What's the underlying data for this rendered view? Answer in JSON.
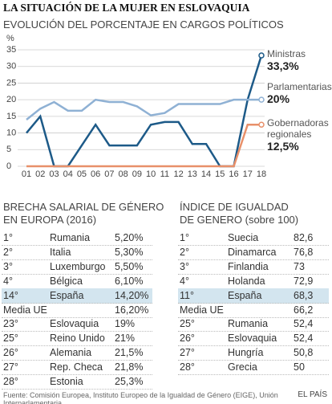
{
  "title": "LA SITUACIÓN DE LA MUJER EN ESLOVAQUIA",
  "chart_data": {
    "type": "line",
    "title": "EVOLUCIÓN DEL PORCENTAJE EN CARGOS POLÍTICOS",
    "y_label": "%",
    "categories": [
      "01",
      "02",
      "03",
      "04",
      "05",
      "06",
      "07",
      "08",
      "09",
      "10",
      "11",
      "12",
      "13",
      "14",
      "15",
      "16",
      "17",
      "18"
    ],
    "series": [
      {
        "name": "Ministras",
        "color": "#1d5a88",
        "values": [
          10,
          15,
          0,
          0,
          6.25,
          12.5,
          6.25,
          6.25,
          6.25,
          12.5,
          13.3,
          13.3,
          6.7,
          6.7,
          0,
          0,
          20,
          33.3
        ],
        "value_labels": [
          null,
          null,
          null,
          null,
          null,
          null,
          null,
          null,
          null,
          null,
          null,
          null,
          null,
          null,
          null,
          null,
          null,
          "33,3%"
        ]
      },
      {
        "name": "Parlamentarias",
        "color": "#8fb1d4",
        "values": [
          14,
          17.3,
          19.3,
          16.7,
          16.7,
          20,
          19.3,
          19.3,
          18,
          15.3,
          16,
          18.7,
          18.7,
          18.7,
          18.7,
          20,
          20,
          20
        ],
        "value_labels": [
          null,
          null,
          null,
          null,
          null,
          null,
          null,
          null,
          null,
          null,
          null,
          null,
          null,
          null,
          null,
          null,
          null,
          "20%"
        ]
      },
      {
        "name": "Gobernadoras regionales",
        "color": "#e8906a",
        "values": [
          0,
          0,
          0,
          0,
          0,
          0,
          0,
          0,
          0,
          0,
          0,
          0,
          0,
          0,
          0,
          0,
          12.5,
          12.5
        ],
        "value_labels": [
          null,
          null,
          null,
          null,
          null,
          null,
          null,
          null,
          null,
          null,
          null,
          null,
          null,
          null,
          null,
          null,
          null,
          "12,5%"
        ]
      }
    ],
    "ylim": [
      0,
      35
    ],
    "yticks": [
      0,
      5,
      10,
      15,
      20,
      25,
      30,
      35
    ],
    "grid": true
  },
  "tables": [
    {
      "title_lines": [
        "BRECHA SALARIAL DE GÉNERO",
        "EN EUROPA (2016)"
      ],
      "rows": [
        {
          "rank": "1°",
          "country": "Rumania",
          "value": "5,20%"
        },
        {
          "rank": "2°",
          "country": "Italia",
          "value": "5,30%"
        },
        {
          "rank": "3°",
          "country": "Luxemburgo",
          "value": "5,50%"
        },
        {
          "rank": "4°",
          "country": "Bélgica",
          "value": "6,10%"
        },
        {
          "rank": "14°",
          "country": "España",
          "value": "14,20%",
          "highlight": true
        },
        {
          "label": "Media UE",
          "value": "16,20%"
        },
        {
          "rank": "23°",
          "country": "Eslovaquia",
          "value": "19%"
        },
        {
          "rank": "25°",
          "country": "Reino Unido",
          "value": "21%"
        },
        {
          "rank": "26°",
          "country": "Alemania",
          "value": "21,5%"
        },
        {
          "rank": "27°",
          "country": "Rep. Checa",
          "value": "21,8%"
        },
        {
          "rank": "28°",
          "country": "Estonia",
          "value": "25,3%"
        }
      ]
    },
    {
      "title_lines": [
        "ÍNDICE DE IGUALDAD",
        "DE GENERO (sobre 100)"
      ],
      "rows": [
        {
          "rank": "1°",
          "country": "Suecia",
          "value": "82,6"
        },
        {
          "rank": "2°",
          "country": "Dinamarca",
          "value": "76,8"
        },
        {
          "rank": "3°",
          "country": "Finlandia",
          "value": "73"
        },
        {
          "rank": "4°",
          "country": "Holanda",
          "value": "72,9"
        },
        {
          "rank": "11°",
          "country": "España",
          "value": "68,3",
          "highlight": true
        },
        {
          "label": "Media UE",
          "value": "66,2"
        },
        {
          "rank": "25°",
          "country": "Rumania",
          "value": "52,4"
        },
        {
          "rank": "26°",
          "country": "Eslovaquia",
          "value": "52,4"
        },
        {
          "rank": "27°",
          "country": "Hungría",
          "value": "50,8"
        },
        {
          "rank": "28°",
          "country": "Grecia",
          "value": "50"
        }
      ]
    }
  ],
  "source": "Fuente: Comisión Europea, Instituto Europeo de la Igualdad de Género (EIGE), Unión Interparlamentaria",
  "brand": "EL PAÍS"
}
